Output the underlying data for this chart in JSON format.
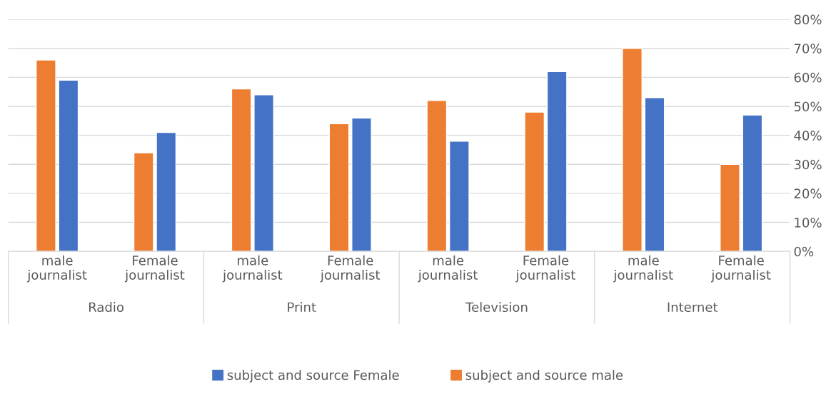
{
  "chart_data": {
    "type": "bar",
    "categories": [
      "male journalist",
      "Female journalist",
      "male journalist",
      "Female journalist",
      "male journalist",
      "Female journalist",
      "male journalist",
      "Female journalist"
    ],
    "series": [
      {
        "name": "subject and source male",
        "color": "#ed7d31",
        "values": [
          66,
          34,
          56,
          44,
          52,
          48,
          70,
          30
        ]
      },
      {
        "name": "subject and source Female",
        "color": "#4472c4",
        "values": [
          59,
          41,
          54,
          46,
          38,
          62,
          53,
          47
        ]
      }
    ],
    "annotations": [
      "Radio",
      "Print",
      "Television",
      "Internet"
    ],
    "ylim": [
      0,
      80
    ],
    "yticks": [
      {
        "value": 0,
        "label": "0%"
      },
      {
        "value": 10,
        "label": "10%"
      },
      {
        "value": 20,
        "label": "20%"
      },
      {
        "value": 30,
        "label": "30%"
      },
      {
        "value": 40,
        "label": "40%"
      },
      {
        "value": 50,
        "label": "50%"
      },
      {
        "value": 60,
        "label": "60%"
      },
      {
        "value": 70,
        "label": "70%"
      },
      {
        "value": 80,
        "label": "80%"
      }
    ],
    "grid": "y",
    "legend": "bottom"
  }
}
